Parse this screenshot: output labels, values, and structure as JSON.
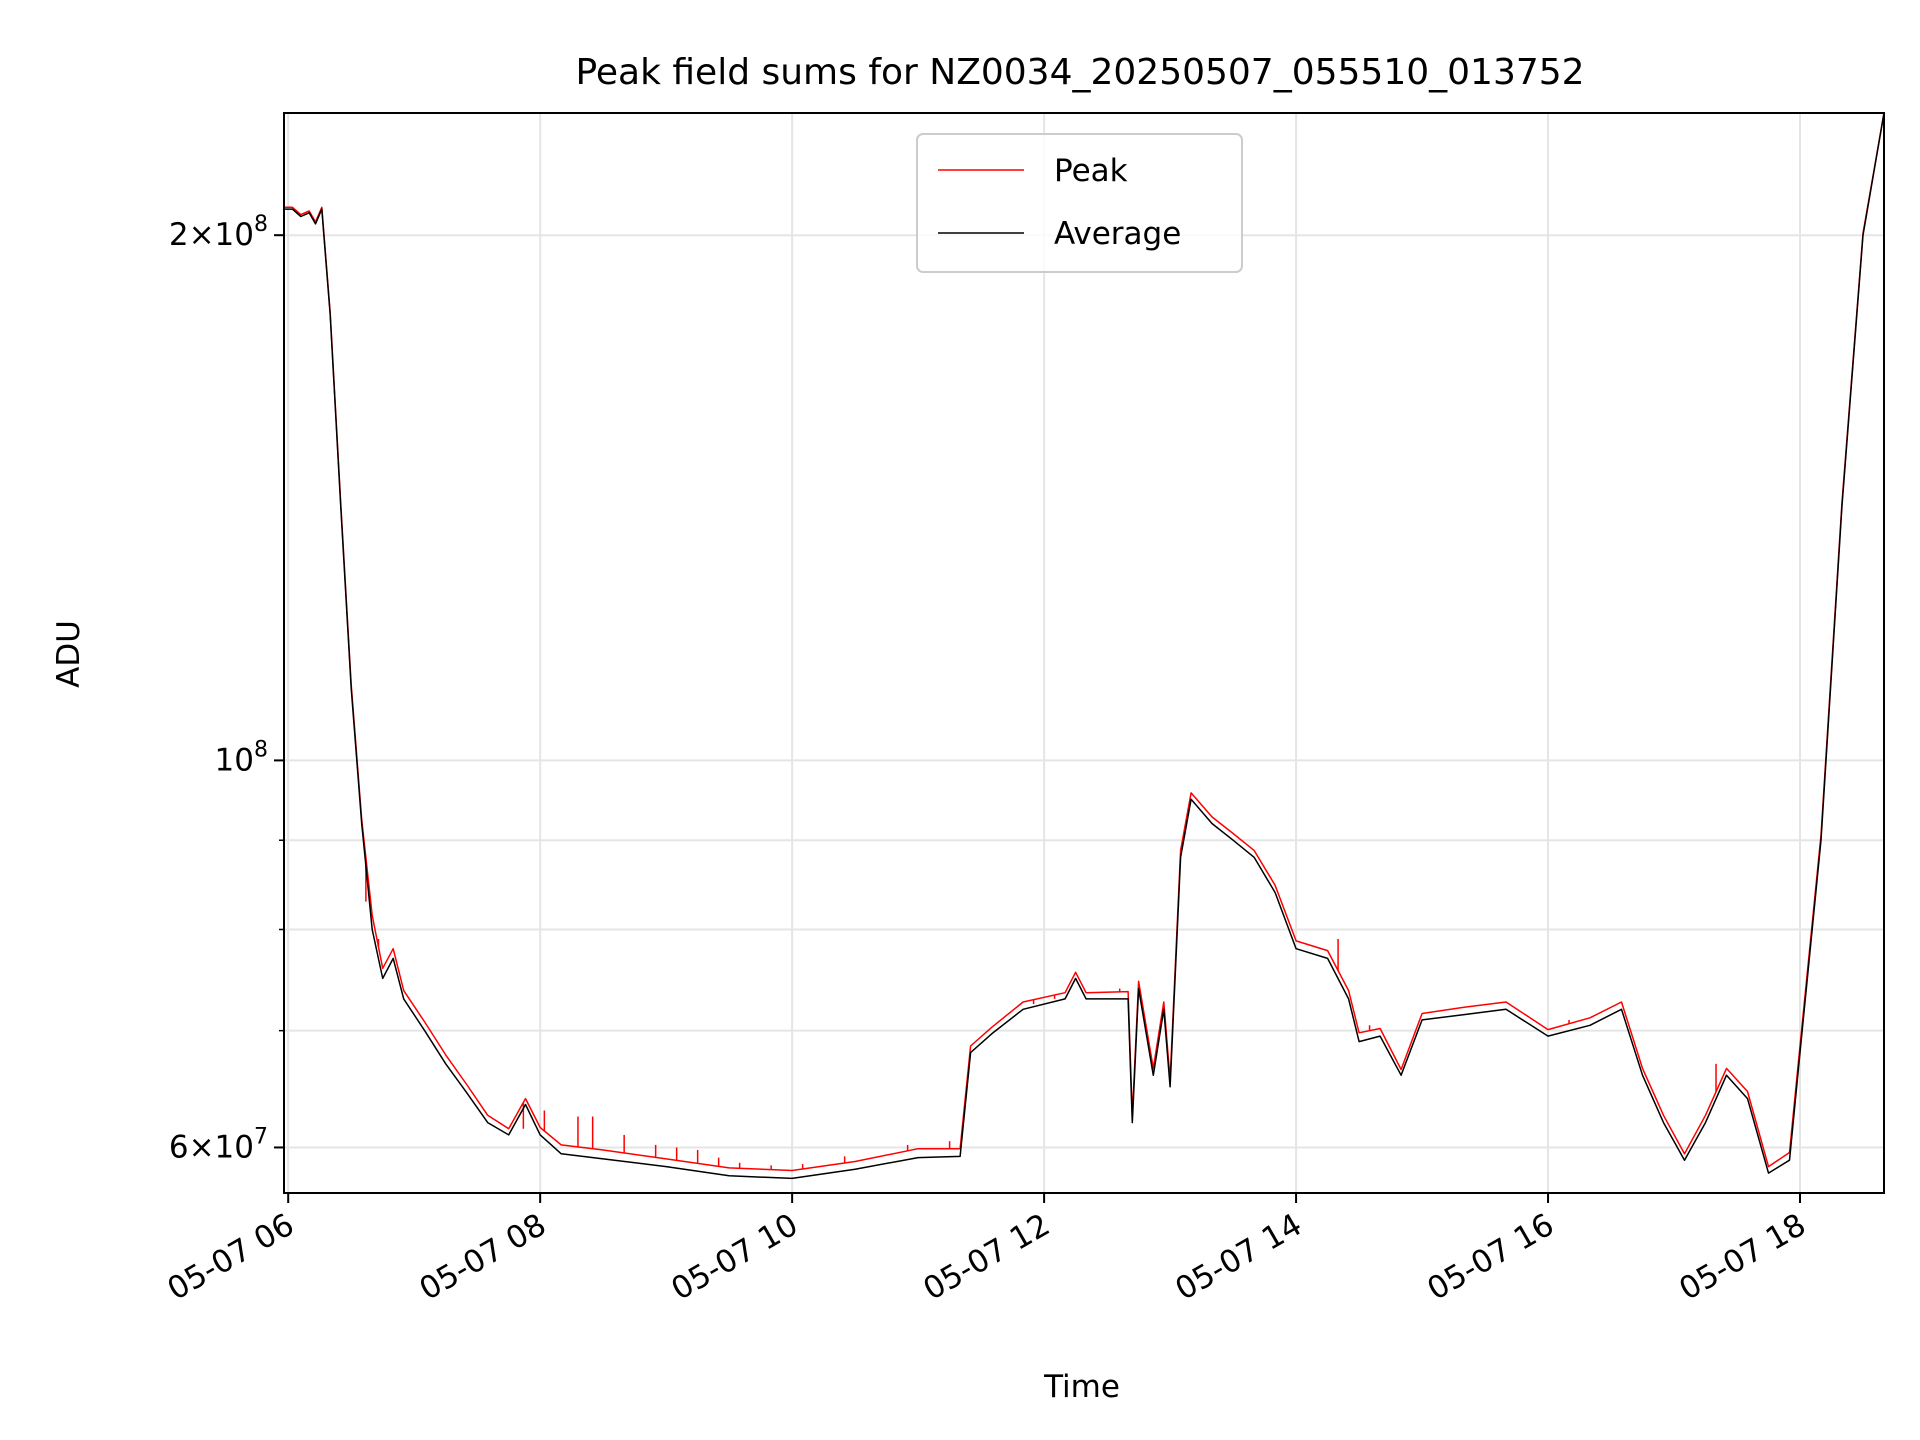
{
  "chart_data": {
    "type": "line",
    "title": "Peak field sums for NZ0034_20250507_055510_013752",
    "xlabel": "Time",
    "ylabel": "ADU",
    "y_scale": "log",
    "ylim": [
      56500000,
      235000000
    ],
    "xlim": [
      "2025-05-07 05:58",
      "2025-05-07 18:40"
    ],
    "grid": true,
    "legend_position": "upper center",
    "x_ticks": [
      {
        "t": "2025-05-07 06:00",
        "label": "05-07 06"
      },
      {
        "t": "2025-05-07 08:00",
        "label": "05-07 08"
      },
      {
        "t": "2025-05-07 10:00",
        "label": "05-07 10"
      },
      {
        "t": "2025-05-07 12:00",
        "label": "05-07 12"
      },
      {
        "t": "2025-05-07 14:00",
        "label": "05-07 14"
      },
      {
        "t": "2025-05-07 16:00",
        "label": "05-07 16"
      },
      {
        "t": "2025-05-07 18:00",
        "label": "05-07 18"
      }
    ],
    "y_major_ticks": [
      {
        "value": 60000000,
        "mant": "6",
        "exp": "7"
      },
      {
        "value": 100000000,
        "mant": "",
        "exp": "8"
      },
      {
        "value": 200000000,
        "mant": "2",
        "exp": "8"
      }
    ],
    "y_minor_gridlines": [
      70000000,
      80000000,
      90000000
    ],
    "series": [
      {
        "name": "Average",
        "color": "#000000",
        "points": [
          [
            "2025-05-07 05:58",
            207000000
          ],
          [
            "2025-05-07 06:02",
            207000000
          ],
          [
            "2025-05-07 06:06",
            205000000
          ],
          [
            "2025-05-07 06:10",
            206000000
          ],
          [
            "2025-05-07 06:13",
            203000000
          ],
          [
            "2025-05-07 06:16",
            207000000
          ],
          [
            "2025-05-07 06:20",
            180000000
          ],
          [
            "2025-05-07 06:25",
            140000000
          ],
          [
            "2025-05-07 06:30",
            110000000
          ],
          [
            "2025-05-07 06:35",
            92000000
          ],
          [
            "2025-05-07 06:40",
            80000000
          ],
          [
            "2025-05-07 06:45",
            75000000
          ],
          [
            "2025-05-07 06:50",
            77000000
          ],
          [
            "2025-05-07 06:55",
            73000000
          ],
          [
            "2025-05-07 07:05",
            70000000
          ],
          [
            "2025-05-07 07:15",
            67000000
          ],
          [
            "2025-05-07 07:25",
            64500000
          ],
          [
            "2025-05-07 07:35",
            62000000
          ],
          [
            "2025-05-07 07:45",
            61000000
          ],
          [
            "2025-05-07 07:53",
            63500000
          ],
          [
            "2025-05-07 08:00",
            61000000
          ],
          [
            "2025-05-07 08:10",
            59500000
          ],
          [
            "2025-05-07 08:30",
            59100000
          ],
          [
            "2025-05-07 09:00",
            58500000
          ],
          [
            "2025-05-07 09:30",
            57800000
          ],
          [
            "2025-05-07 10:00",
            57600000
          ],
          [
            "2025-05-07 10:30",
            58300000
          ],
          [
            "2025-05-07 11:00",
            59200000
          ],
          [
            "2025-05-07 11:20",
            59300000
          ],
          [
            "2025-05-07 11:25",
            68000000
          ],
          [
            "2025-05-07 11:35",
            69700000
          ],
          [
            "2025-05-07 11:50",
            72000000
          ],
          [
            "2025-05-07 12:10",
            73000000
          ],
          [
            "2025-05-07 12:15",
            75000000
          ],
          [
            "2025-05-07 12:20",
            73000000
          ],
          [
            "2025-05-07 12:40",
            73000000
          ],
          [
            "2025-05-07 12:42",
            62000000
          ],
          [
            "2025-05-07 12:45",
            74000000
          ],
          [
            "2025-05-07 12:52",
            66000000
          ],
          [
            "2025-05-07 12:57",
            72000000
          ],
          [
            "2025-05-07 13:00",
            65000000
          ],
          [
            "2025-05-07 13:05",
            88000000
          ],
          [
            "2025-05-07 13:10",
            95000000
          ],
          [
            "2025-05-07 13:20",
            92000000
          ],
          [
            "2025-05-07 13:30",
            90000000
          ],
          [
            "2025-05-07 13:40",
            88000000
          ],
          [
            "2025-05-07 13:50",
            84000000
          ],
          [
            "2025-05-07 14:00",
            78000000
          ],
          [
            "2025-05-07 14:15",
            77000000
          ],
          [
            "2025-05-07 14:25",
            73000000
          ],
          [
            "2025-05-07 14:30",
            69000000
          ],
          [
            "2025-05-07 14:40",
            69500000
          ],
          [
            "2025-05-07 14:50",
            66000000
          ],
          [
            "2025-05-07 15:00",
            71000000
          ],
          [
            "2025-05-07 15:20",
            71500000
          ],
          [
            "2025-05-07 15:40",
            72000000
          ],
          [
            "2025-05-07 16:00",
            69500000
          ],
          [
            "2025-05-07 16:20",
            70500000
          ],
          [
            "2025-05-07 16:35",
            72000000
          ],
          [
            "2025-05-07 16:45",
            66000000
          ],
          [
            "2025-05-07 16:55",
            62000000
          ],
          [
            "2025-05-07 17:05",
            59000000
          ],
          [
            "2025-05-07 17:15",
            62000000
          ],
          [
            "2025-05-07 17:25",
            66000000
          ],
          [
            "2025-05-07 17:35",
            64000000
          ],
          [
            "2025-05-07 17:45",
            58000000
          ],
          [
            "2025-05-07 17:55",
            59000000
          ],
          [
            "2025-05-07 18:00",
            68000000
          ],
          [
            "2025-05-07 18:10",
            90000000
          ],
          [
            "2025-05-07 18:20",
            140000000
          ],
          [
            "2025-05-07 18:30",
            200000000
          ],
          [
            "2025-05-07 18:40",
            235000000
          ]
        ]
      },
      {
        "name": "Peak",
        "color": "#ff0000",
        "points": [
          [
            "2025-05-07 05:58",
            207500000
          ],
          [
            "2025-05-07 06:02",
            207500000
          ],
          [
            "2025-05-07 06:06",
            205500000
          ],
          [
            "2025-05-07 06:10",
            206500000
          ],
          [
            "2025-05-07 06:13",
            203500000
          ],
          [
            "2025-05-07 06:16",
            207500000
          ],
          [
            "2025-05-07 06:20",
            180500000
          ],
          [
            "2025-05-07 06:25",
            140500000
          ],
          [
            "2025-05-07 06:30",
            110500000
          ],
          [
            "2025-05-07 06:35",
            92500000
          ],
          [
            "2025-05-07 06:40",
            81500000
          ],
          [
            "2025-05-07 06:45",
            76000000
          ],
          [
            "2025-05-07 06:50",
            78000000
          ],
          [
            "2025-05-07 06:55",
            73800000
          ],
          [
            "2025-05-07 07:05",
            70800000
          ],
          [
            "2025-05-07 07:15",
            67800000
          ],
          [
            "2025-05-07 07:25",
            65200000
          ],
          [
            "2025-05-07 07:35",
            62600000
          ],
          [
            "2025-05-07 07:45",
            61500000
          ],
          [
            "2025-05-07 07:53",
            64000000
          ],
          [
            "2025-05-07 08:00",
            61600000
          ],
          [
            "2025-05-07 08:10",
            60200000
          ],
          [
            "2025-05-07 08:30",
            59800000
          ],
          [
            "2025-05-07 09:00",
            59100000
          ],
          [
            "2025-05-07 09:30",
            58400000
          ],
          [
            "2025-05-07 10:00",
            58200000
          ],
          [
            "2025-05-07 10:30",
            58900000
          ],
          [
            "2025-05-07 11:00",
            59900000
          ],
          [
            "2025-05-07 11:20",
            59900000
          ],
          [
            "2025-05-07 11:25",
            68600000
          ],
          [
            "2025-05-07 11:35",
            70300000
          ],
          [
            "2025-05-07 11:50",
            72700000
          ],
          [
            "2025-05-07 12:10",
            73600000
          ],
          [
            "2025-05-07 12:15",
            75600000
          ],
          [
            "2025-05-07 12:20",
            73600000
          ],
          [
            "2025-05-07 12:40",
            73700000
          ],
          [
            "2025-05-07 12:42",
            62500000
          ],
          [
            "2025-05-07 12:45",
            74700000
          ],
          [
            "2025-05-07 12:52",
            66600000
          ],
          [
            "2025-05-07 12:57",
            72700000
          ],
          [
            "2025-05-07 13:00",
            65600000
          ],
          [
            "2025-05-07 13:05",
            88800000
          ],
          [
            "2025-05-07 13:10",
            95800000
          ],
          [
            "2025-05-07 13:20",
            92800000
          ],
          [
            "2025-05-07 13:30",
            90800000
          ],
          [
            "2025-05-07 13:40",
            88800000
          ],
          [
            "2025-05-07 13:50",
            84800000
          ],
          [
            "2025-05-07 14:00",
            78800000
          ],
          [
            "2025-05-07 14:15",
            77800000
          ],
          [
            "2025-05-07 14:25",
            73800000
          ],
          [
            "2025-05-07 14:30",
            69800000
          ],
          [
            "2025-05-07 14:40",
            70200000
          ],
          [
            "2025-05-07 14:50",
            66500000
          ],
          [
            "2025-05-07 15:00",
            71600000
          ],
          [
            "2025-05-07 15:20",
            72200000
          ],
          [
            "2025-05-07 15:40",
            72700000
          ],
          [
            "2025-05-07 16:00",
            70100000
          ],
          [
            "2025-05-07 16:20",
            71200000
          ],
          [
            "2025-05-07 16:35",
            72700000
          ],
          [
            "2025-05-07 16:45",
            66600000
          ],
          [
            "2025-05-07 16:55",
            62600000
          ],
          [
            "2025-05-07 17:05",
            59500000
          ],
          [
            "2025-05-07 17:15",
            62600000
          ],
          [
            "2025-05-07 17:25",
            66600000
          ],
          [
            "2025-05-07 17:35",
            64600000
          ],
          [
            "2025-05-07 17:45",
            58500000
          ],
          [
            "2025-05-07 17:55",
            59600000
          ],
          [
            "2025-05-07 18:00",
            68600000
          ],
          [
            "2025-05-07 18:10",
            90600000
          ],
          [
            "2025-05-07 18:20",
            140600000
          ],
          [
            "2025-05-07 18:30",
            200500000
          ],
          [
            "2025-05-07 18:40",
            235000000
          ]
        ],
        "spikes": [
          [
            "2025-05-07 06:37",
            83000000
          ],
          [
            "2025-05-07 06:43",
            79000000
          ],
          [
            "2025-05-07 07:52",
            61500000
          ],
          [
            "2025-05-07 08:02",
            63000000
          ],
          [
            "2025-05-07 08:18",
            62500000
          ],
          [
            "2025-05-07 08:25",
            62500000
          ],
          [
            "2025-05-07 08:40",
            61000000
          ],
          [
            "2025-05-07 08:55",
            60200000
          ],
          [
            "2025-05-07 09:05",
            60000000
          ],
          [
            "2025-05-07 09:15",
            59800000
          ],
          [
            "2025-05-07 09:25",
            59200000
          ],
          [
            "2025-05-07 09:35",
            58800000
          ],
          [
            "2025-05-07 09:50",
            58600000
          ],
          [
            "2025-05-07 10:05",
            58700000
          ],
          [
            "2025-05-07 10:25",
            59300000
          ],
          [
            "2025-05-07 10:55",
            60200000
          ],
          [
            "2025-05-07 11:15",
            60500000
          ],
          [
            "2025-05-07 11:55",
            72500000
          ],
          [
            "2025-05-07 12:05",
            73000000
          ],
          [
            "2025-05-07 12:36",
            74000000
          ],
          [
            "2025-05-07 14:20",
            79000000
          ],
          [
            "2025-05-07 14:35",
            70500000
          ],
          [
            "2025-05-07 15:30",
            72500000
          ],
          [
            "2025-05-07 16:10",
            71000000
          ],
          [
            "2025-05-07 17:20",
            67000000
          ]
        ]
      }
    ],
    "legend": [
      {
        "label": "Peak",
        "color": "#ff0000"
      },
      {
        "label": "Average",
        "color": "#000000"
      }
    ]
  }
}
